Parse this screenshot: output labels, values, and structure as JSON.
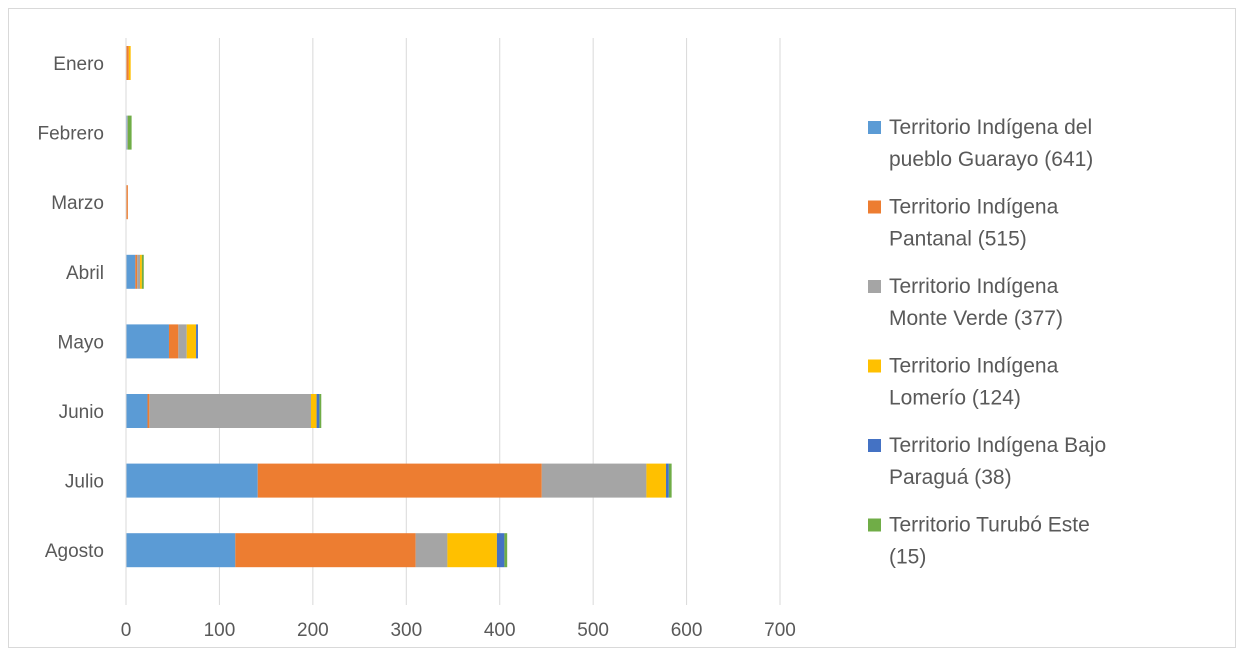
{
  "chart_data": {
    "type": "bar",
    "orientation": "horizontal",
    "stacked": true,
    "title": "",
    "xlabel": "",
    "ylabel": "",
    "categories": [
      "Enero",
      "Febrero",
      "Marzo",
      "Abril",
      "Mayo",
      "Junio",
      "Julio",
      "Agosto"
    ],
    "xlim": [
      0,
      700
    ],
    "xticks": [
      0,
      100,
      200,
      300,
      400,
      500,
      600,
      700
    ],
    "grid": "vertical",
    "legend_position": "right",
    "series": [
      {
        "name": "Territorio Indígena del pueblo Guarayo (641)",
        "legend_lines": [
          "Territorio Indígena del",
          "pueblo Guarayo (641)"
        ],
        "color": "#5b9bd5",
        "values": [
          0,
          1,
          0,
          10,
          46,
          23,
          141,
          117
        ]
      },
      {
        "name": "Territorio Indígena Pantanal (515)",
        "legend_lines": [
          "Territorio Indígena",
          "Pantanal (515)"
        ],
        "color": "#ed7d31",
        "values": [
          3,
          0,
          2,
          2,
          10,
          2,
          304,
          193
        ]
      },
      {
        "name": "Territorio Indígena Monte Verde (377)",
        "legend_lines": [
          "Territorio Indígena",
          "Monte Verde (377)"
        ],
        "color": "#a5a5a5",
        "values": [
          0,
          1,
          0,
          3,
          9,
          173,
          112,
          34
        ]
      },
      {
        "name": "Territorio Indígena Lomerío (124)",
        "legend_lines": [
          "Territorio Indígena",
          "Lomerío (124)"
        ],
        "color": "#ffc000",
        "values": [
          2,
          0,
          0,
          2,
          10,
          6,
          21,
          53
        ]
      },
      {
        "name": "Territorio Indígena Bajo Paraguá (38)",
        "legend_lines": [
          "Territorio Indígena Bajo",
          "Paraguá (38)"
        ],
        "color": "#4472c4",
        "values": [
          0,
          0,
          0,
          0,
          2,
          3,
          3,
          8
        ]
      },
      {
        "name": "Territorio Turubó Este (15)",
        "legend_lines": [
          "Territorio Turubó Este",
          "(15)"
        ],
        "color": "#70ad47",
        "values": [
          0,
          4,
          0,
          2,
          0,
          2,
          3,
          3
        ]
      }
    ]
  }
}
